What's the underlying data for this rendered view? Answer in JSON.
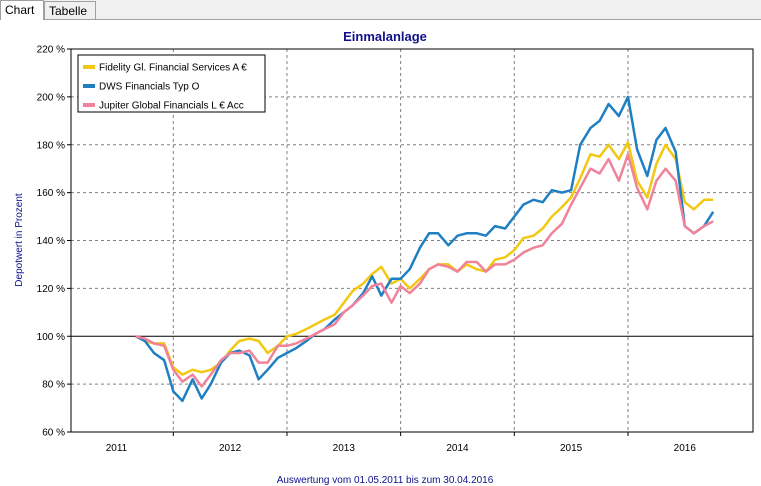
{
  "tabs": [
    {
      "label": "Chart",
      "active": true
    },
    {
      "label": "Tabelle",
      "active": false
    }
  ],
  "chart_data": {
    "type": "line",
    "title": "Einmalanlage",
    "ylabel": "Depotwert in Prozent",
    "footer": "Auswertung vom 01.05.2011 bis zum 30.04.2016",
    "ylim": [
      60,
      220
    ],
    "yticks": [
      "60 %",
      "80 %",
      "100 %",
      "120 %",
      "140 %",
      "160 %",
      "180 %",
      "200 %",
      "220 %"
    ],
    "reference_value": 100,
    "xlim": [
      2010.6,
      2016.6
    ],
    "year_labels": [
      "2011",
      "2012",
      "2013",
      "2014",
      "2015",
      "2016"
    ],
    "year_boundaries": [
      2011.5,
      2012.5,
      2013.5,
      2014.5,
      2015.5
    ],
    "series": [
      {
        "name": "Fidelity Gl. Financial Services A €",
        "color": "#f2c811",
        "points": [
          [
            2011.17,
            100
          ],
          [
            2011.25,
            98
          ],
          [
            2011.33,
            97
          ],
          [
            2011.42,
            97
          ],
          [
            2011.5,
            87
          ],
          [
            2011.58,
            84
          ],
          [
            2011.67,
            86
          ],
          [
            2011.75,
            85
          ],
          [
            2011.83,
            86
          ],
          [
            2011.92,
            89
          ],
          [
            2012.0,
            94
          ],
          [
            2012.08,
            98
          ],
          [
            2012.17,
            99
          ],
          [
            2012.25,
            98
          ],
          [
            2012.33,
            93
          ],
          [
            2012.42,
            96
          ],
          [
            2012.5,
            100
          ],
          [
            2012.58,
            101
          ],
          [
            2012.67,
            103
          ],
          [
            2012.75,
            105
          ],
          [
            2012.83,
            107
          ],
          [
            2012.92,
            109
          ],
          [
            2013.0,
            114
          ],
          [
            2013.08,
            119
          ],
          [
            2013.17,
            122
          ],
          [
            2013.25,
            126
          ],
          [
            2013.33,
            129
          ],
          [
            2013.42,
            122
          ],
          [
            2013.5,
            124
          ],
          [
            2013.58,
            120
          ],
          [
            2013.67,
            124
          ],
          [
            2013.75,
            128
          ],
          [
            2013.83,
            130
          ],
          [
            2013.92,
            130
          ],
          [
            2014.0,
            127
          ],
          [
            2014.08,
            130
          ],
          [
            2014.17,
            128
          ],
          [
            2014.25,
            127
          ],
          [
            2014.33,
            132
          ],
          [
            2014.42,
            133
          ],
          [
            2014.5,
            136
          ],
          [
            2014.58,
            141
          ],
          [
            2014.67,
            142
          ],
          [
            2014.75,
            145
          ],
          [
            2014.83,
            150
          ],
          [
            2014.92,
            154
          ],
          [
            2015.0,
            158
          ],
          [
            2015.08,
            166
          ],
          [
            2015.17,
            176
          ],
          [
            2015.25,
            175
          ],
          [
            2015.33,
            180
          ],
          [
            2015.42,
            174
          ],
          [
            2015.5,
            181
          ],
          [
            2015.58,
            165
          ],
          [
            2015.67,
            158
          ],
          [
            2015.75,
            172
          ],
          [
            2015.83,
            180
          ],
          [
            2015.92,
            174
          ],
          [
            2016.0,
            156
          ],
          [
            2016.08,
            153
          ],
          [
            2016.17,
            157
          ],
          [
            2016.25,
            157
          ]
        ]
      },
      {
        "name": "DWS Financials Typ O",
        "color": "#1f7fc3",
        "points": [
          [
            2011.17,
            100
          ],
          [
            2011.25,
            98
          ],
          [
            2011.33,
            93
          ],
          [
            2011.42,
            90
          ],
          [
            2011.5,
            77
          ],
          [
            2011.58,
            73
          ],
          [
            2011.67,
            82
          ],
          [
            2011.75,
            74
          ],
          [
            2011.83,
            80
          ],
          [
            2011.92,
            89
          ],
          [
            2012.0,
            93
          ],
          [
            2012.08,
            94
          ],
          [
            2012.17,
            92
          ],
          [
            2012.25,
            82
          ],
          [
            2012.33,
            86
          ],
          [
            2012.42,
            91
          ],
          [
            2012.5,
            93
          ],
          [
            2012.58,
            95
          ],
          [
            2012.67,
            98
          ],
          [
            2012.75,
            101
          ],
          [
            2012.83,
            103
          ],
          [
            2012.92,
            107
          ],
          [
            2013.0,
            110
          ],
          [
            2013.08,
            113
          ],
          [
            2013.17,
            118
          ],
          [
            2013.25,
            125
          ],
          [
            2013.33,
            117
          ],
          [
            2013.42,
            124
          ],
          [
            2013.5,
            124
          ],
          [
            2013.58,
            128
          ],
          [
            2013.67,
            137
          ],
          [
            2013.75,
            143
          ],
          [
            2013.83,
            143
          ],
          [
            2013.92,
            138
          ],
          [
            2014.0,
            142
          ],
          [
            2014.08,
            143
          ],
          [
            2014.17,
            143
          ],
          [
            2014.25,
            142
          ],
          [
            2014.33,
            146
          ],
          [
            2014.42,
            145
          ],
          [
            2014.5,
            150
          ],
          [
            2014.58,
            155
          ],
          [
            2014.67,
            157
          ],
          [
            2014.75,
            156
          ],
          [
            2014.83,
            161
          ],
          [
            2014.92,
            160
          ],
          [
            2015.0,
            161
          ],
          [
            2015.08,
            180
          ],
          [
            2015.17,
            187
          ],
          [
            2015.25,
            190
          ],
          [
            2015.33,
            197
          ],
          [
            2015.42,
            192
          ],
          [
            2015.5,
            200
          ],
          [
            2015.58,
            178
          ],
          [
            2015.67,
            167
          ],
          [
            2015.75,
            182
          ],
          [
            2015.83,
            187
          ],
          [
            2015.92,
            177
          ],
          [
            2016.0,
            146
          ],
          [
            2016.08,
            143
          ],
          [
            2016.17,
            146
          ],
          [
            2016.25,
            152
          ]
        ]
      },
      {
        "name": "Jupiter Global Financials L € Acc",
        "color": "#f0829a",
        "points": [
          [
            2011.17,
            100
          ],
          [
            2011.25,
            99
          ],
          [
            2011.33,
            97
          ],
          [
            2011.42,
            96
          ],
          [
            2011.5,
            86
          ],
          [
            2011.58,
            81
          ],
          [
            2011.67,
            84
          ],
          [
            2011.75,
            79
          ],
          [
            2011.83,
            84
          ],
          [
            2011.92,
            90
          ],
          [
            2012.0,
            93
          ],
          [
            2012.08,
            93
          ],
          [
            2012.17,
            94
          ],
          [
            2012.25,
            89
          ],
          [
            2012.33,
            89
          ],
          [
            2012.42,
            96
          ],
          [
            2012.5,
            96
          ],
          [
            2012.58,
            97
          ],
          [
            2012.67,
            99
          ],
          [
            2012.75,
            101
          ],
          [
            2012.83,
            103
          ],
          [
            2012.92,
            105
          ],
          [
            2013.0,
            110
          ],
          [
            2013.08,
            113
          ],
          [
            2013.17,
            117
          ],
          [
            2013.25,
            121
          ],
          [
            2013.33,
            122
          ],
          [
            2013.42,
            114
          ],
          [
            2013.5,
            121
          ],
          [
            2013.58,
            118
          ],
          [
            2013.67,
            122
          ],
          [
            2013.75,
            128
          ],
          [
            2013.83,
            130
          ],
          [
            2013.92,
            129
          ],
          [
            2014.0,
            127
          ],
          [
            2014.08,
            131
          ],
          [
            2014.17,
            131
          ],
          [
            2014.25,
            127
          ],
          [
            2014.33,
            130
          ],
          [
            2014.42,
            130
          ],
          [
            2014.5,
            132
          ],
          [
            2014.58,
            135
          ],
          [
            2014.67,
            137
          ],
          [
            2014.75,
            138
          ],
          [
            2014.83,
            143
          ],
          [
            2014.92,
            147
          ],
          [
            2015.0,
            155
          ],
          [
            2015.08,
            162
          ],
          [
            2015.17,
            170
          ],
          [
            2015.25,
            168
          ],
          [
            2015.33,
            174
          ],
          [
            2015.42,
            165
          ],
          [
            2015.5,
            176
          ],
          [
            2015.58,
            162
          ],
          [
            2015.67,
            153
          ],
          [
            2015.75,
            165
          ],
          [
            2015.83,
            170
          ],
          [
            2015.92,
            165
          ],
          [
            2016.0,
            146
          ],
          [
            2016.08,
            143
          ],
          [
            2016.17,
            146
          ],
          [
            2016.25,
            148
          ]
        ]
      }
    ],
    "grid": true,
    "legend_position": "top-left"
  }
}
